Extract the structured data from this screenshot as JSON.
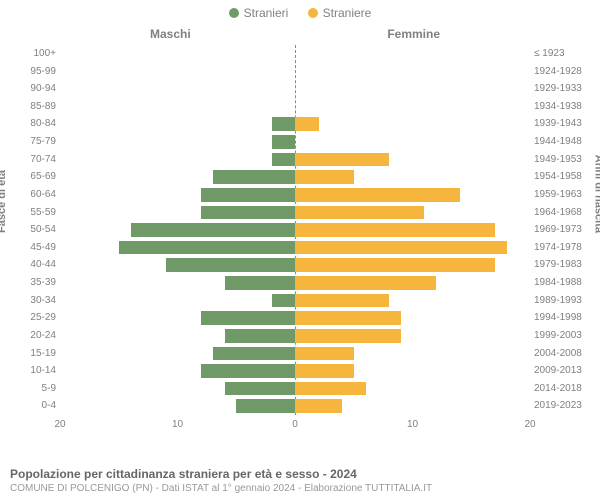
{
  "legend": {
    "male_label": "Stranieri",
    "female_label": "Straniere"
  },
  "headers": {
    "left": "Maschi",
    "right": "Femmine",
    "y_left": "Fasce di età",
    "y_right": "Anni di nascita"
  },
  "footer": {
    "title": "Popolazione per cittadinanza straniera per età e sesso - 2024",
    "subtitle": "COMUNE DI POLCENIGO (PN) - Dati ISTAT al 1° gennaio 2024 - Elaborazione TUTTITALIA.IT"
  },
  "chart": {
    "type": "population_pyramid",
    "male_color": "#6f9a68",
    "female_color": "#f6b63e",
    "background": "#ffffff",
    "axis_color": "#808080",
    "center_line_color": "#888888",
    "x_max": 20,
    "x_ticks": [
      20,
      10,
      0,
      10,
      20
    ],
    "rows": [
      {
        "age": "100+",
        "birth": "≤ 1923",
        "m": 0,
        "f": 0
      },
      {
        "age": "95-99",
        "birth": "1924-1928",
        "m": 0,
        "f": 0
      },
      {
        "age": "90-94",
        "birth": "1929-1933",
        "m": 0,
        "f": 0
      },
      {
        "age": "85-89",
        "birth": "1934-1938",
        "m": 0,
        "f": 0
      },
      {
        "age": "80-84",
        "birth": "1939-1943",
        "m": 2,
        "f": 2
      },
      {
        "age": "75-79",
        "birth": "1944-1948",
        "m": 2,
        "f": 0
      },
      {
        "age": "70-74",
        "birth": "1949-1953",
        "m": 2,
        "f": 8
      },
      {
        "age": "65-69",
        "birth": "1954-1958",
        "m": 7,
        "f": 5
      },
      {
        "age": "60-64",
        "birth": "1959-1963",
        "m": 8,
        "f": 14
      },
      {
        "age": "55-59",
        "birth": "1964-1968",
        "m": 8,
        "f": 11
      },
      {
        "age": "50-54",
        "birth": "1969-1973",
        "m": 14,
        "f": 17
      },
      {
        "age": "45-49",
        "birth": "1974-1978",
        "m": 15,
        "f": 18
      },
      {
        "age": "40-44",
        "birth": "1979-1983",
        "m": 11,
        "f": 17
      },
      {
        "age": "35-39",
        "birth": "1984-1988",
        "m": 6,
        "f": 12
      },
      {
        "age": "30-34",
        "birth": "1989-1993",
        "m": 2,
        "f": 8
      },
      {
        "age": "25-29",
        "birth": "1994-1998",
        "m": 8,
        "f": 9
      },
      {
        "age": "20-24",
        "birth": "1999-2003",
        "m": 6,
        "f": 9
      },
      {
        "age": "15-19",
        "birth": "2004-2008",
        "m": 7,
        "f": 5
      },
      {
        "age": "10-14",
        "birth": "2009-2013",
        "m": 8,
        "f": 5
      },
      {
        "age": "5-9",
        "birth": "2014-2018",
        "m": 6,
        "f": 6
      },
      {
        "age": "0-4",
        "birth": "2019-2023",
        "m": 5,
        "f": 4
      }
    ]
  }
}
